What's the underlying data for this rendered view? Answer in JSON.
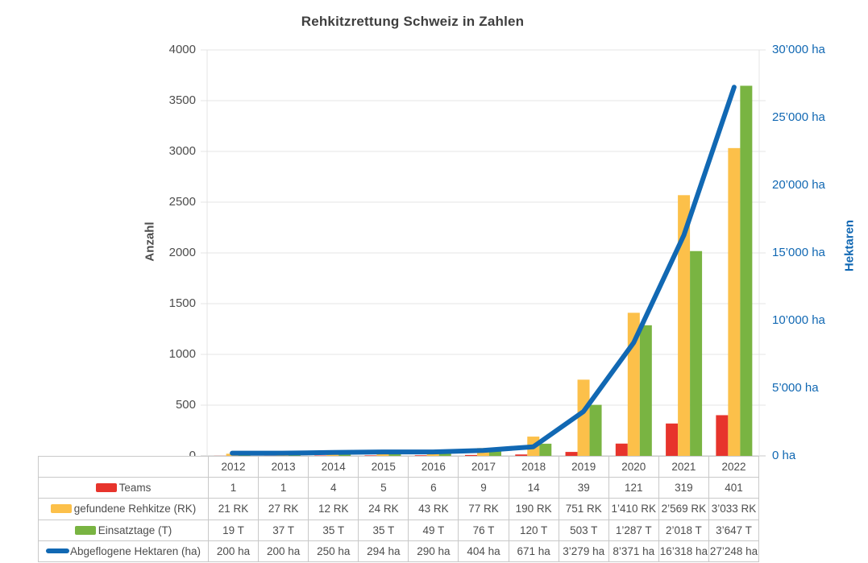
{
  "title": "Rehkitzrettung Schweiz in Zahlen",
  "chart_data": {
    "type": "combo-bar-line",
    "title": "Rehkitzrettung Schweiz in Zahlen",
    "categories": [
      "2012",
      "2013",
      "2014",
      "2015",
      "2016",
      "2017",
      "2018",
      "2019",
      "2020",
      "2021",
      "2022"
    ],
    "left_axis": {
      "label": "Anzahl",
      "min": 0,
      "max": 4000,
      "ticks": [
        "4000",
        "3500",
        "3000",
        "2500",
        "2000",
        "1500",
        "1000",
        "500",
        "0"
      ]
    },
    "right_axis": {
      "label": "Hektaren",
      "min": 0,
      "max": 30000,
      "ticks": [
        "30’000 ha",
        "25’000 ha",
        "20’000 ha",
        "15’000 ha",
        "10’000 ha",
        "5’000 ha",
        "0 ha"
      ]
    },
    "grid": true,
    "legend_position": "table-left",
    "series": [
      {
        "name": "Teams",
        "chart": "bar",
        "axis": "left",
        "color": "#e7342c",
        "values": [
          1,
          1,
          4,
          5,
          6,
          9,
          14,
          39,
          121,
          319,
          401
        ],
        "table_cells": [
          "1",
          "1",
          "4",
          "5",
          "6",
          "9",
          "14",
          "39",
          "121",
          "319",
          "401"
        ]
      },
      {
        "name": "gefundene Rehkitze (RK)",
        "chart": "bar",
        "axis": "left",
        "color": "#fcc04a",
        "values": [
          21,
          27,
          12,
          24,
          43,
          77,
          190,
          751,
          1410,
          2569,
          3033
        ],
        "table_cells": [
          "21 RK",
          "27 RK",
          "12 RK",
          "24 RK",
          "43 RK",
          "77 RK",
          "190 RK",
          "751 RK",
          "1’410 RK",
          "2’569 RK",
          "3’033 RK"
        ]
      },
      {
        "name": "Einsatztage (T)",
        "chart": "bar",
        "axis": "left",
        "color": "#79b442",
        "values": [
          19,
          37,
          35,
          35,
          49,
          76,
          120,
          503,
          1287,
          2018,
          3647
        ],
        "table_cells": [
          "19 T",
          "37 T",
          "35 T",
          "35 T",
          "49 T",
          "76 T",
          "120 T",
          "503 T",
          "1’287 T",
          "2’018 T",
          "3’647 T"
        ]
      },
      {
        "name": "Abgeflogene Hektaren (ha)",
        "chart": "line",
        "axis": "right",
        "color": "#1168b3",
        "values": [
          200,
          200,
          250,
          294,
          290,
          404,
          671,
          3279,
          8371,
          16318,
          27248
        ],
        "table_cells": [
          "200 ha",
          "200 ha",
          "250 ha",
          "294 ha",
          "290 ha",
          "404 ha",
          "671 ha",
          "3’279 ha",
          "8’371 ha",
          "16’318 ha",
          "27’248 ha"
        ]
      }
    ],
    "colors": {
      "grid": "#e4e4e4",
      "axis_border": "#c9c9c9",
      "text": "#4d4d4d"
    }
  }
}
